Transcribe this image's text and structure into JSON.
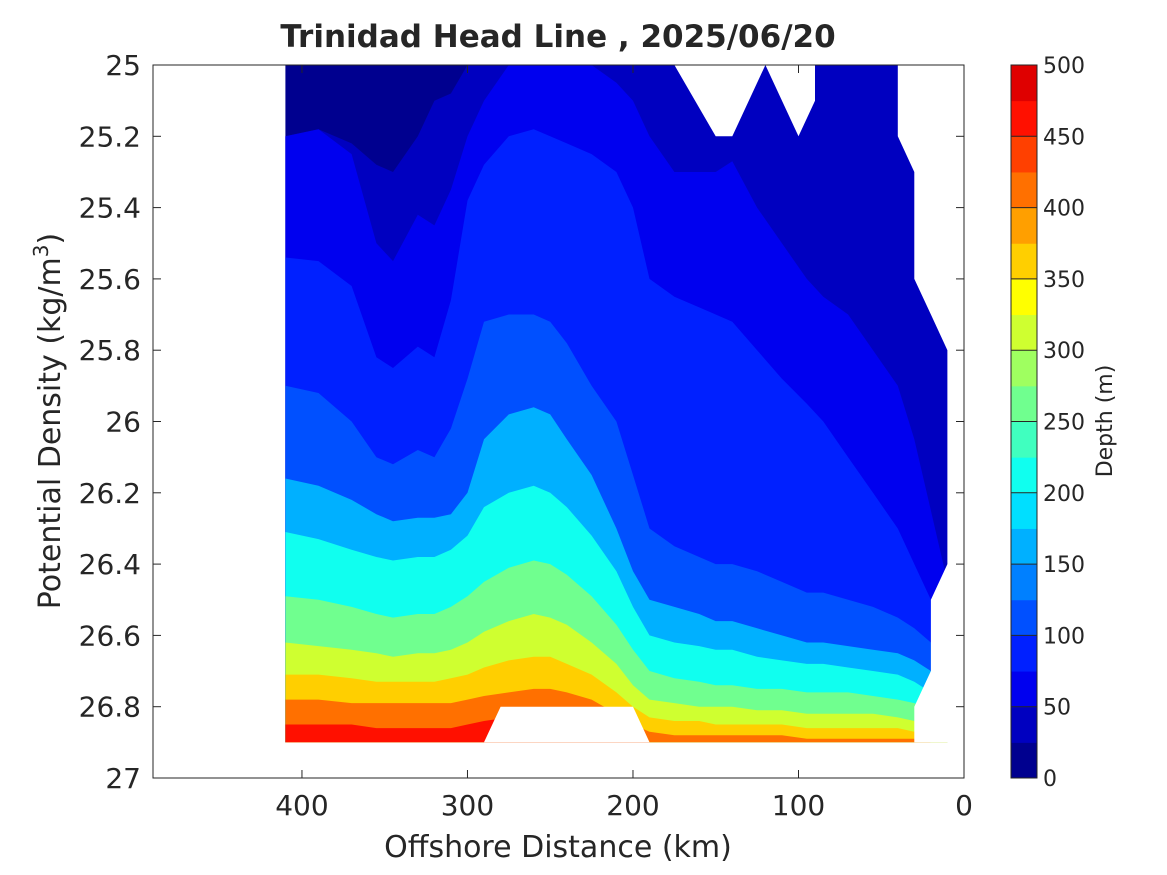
{
  "chart_data": {
    "type": "contour",
    "title": "Trinidad Head Line , 2025/06/20",
    "xlabel": "Offshore Distance (km)",
    "ylabel_main": "Potential Density (kg/m",
    "ylabel_sup": "3",
    "ylabel_close": ")",
    "colorbar_label": "Depth (m)",
    "x_reversed": true,
    "y_reversed": true,
    "xlim": [
      0,
      490
    ],
    "ylim": [
      25,
      27
    ],
    "xticks": [
      {
        "value": 400,
        "label": "400"
      },
      {
        "value": 300,
        "label": "300"
      },
      {
        "value": 200,
        "label": "200"
      },
      {
        "value": 100,
        "label": "100"
      },
      {
        "value": 0,
        "label": "0"
      }
    ],
    "yticks": [
      {
        "value": 25,
        "label": "25"
      },
      {
        "value": 25.2,
        "label": "25.2"
      },
      {
        "value": 25.4,
        "label": "25.4"
      },
      {
        "value": 25.6,
        "label": "25.6"
      },
      {
        "value": 25.8,
        "label": "25.8"
      },
      {
        "value": 26,
        "label": "26"
      },
      {
        "value": 26.2,
        "label": "26.2"
      },
      {
        "value": 26.4,
        "label": "26.4"
      },
      {
        "value": 26.6,
        "label": "26.6"
      },
      {
        "value": 26.8,
        "label": "26.8"
      },
      {
        "value": 27,
        "label": "27"
      }
    ],
    "colorbar": {
      "range": [
        0,
        500
      ],
      "ticks": [
        {
          "value": 0,
          "label": "0"
        },
        {
          "value": 50,
          "label": "50"
        },
        {
          "value": 100,
          "label": "100"
        },
        {
          "value": 150,
          "label": "150"
        },
        {
          "value": 200,
          "label": "200"
        },
        {
          "value": 250,
          "label": "250"
        },
        {
          "value": 300,
          "label": "300"
        },
        {
          "value": 350,
          "label": "350"
        },
        {
          "value": 400,
          "label": "400"
        },
        {
          "value": 450,
          "label": "450"
        },
        {
          "value": 500,
          "label": "500"
        }
      ],
      "levels": [
        0,
        25,
        50,
        75,
        100,
        125,
        150,
        175,
        200,
        225,
        250,
        275,
        300,
        325,
        350,
        375,
        400,
        425,
        450,
        475,
        500
      ],
      "colors": [
        "#00008f",
        "#0000c0",
        "#0000ef",
        "#0020ff",
        "#0050ff",
        "#0080ff",
        "#00b0ff",
        "#00dfff",
        "#10ffef",
        "#40ffbf",
        "#70ff8f",
        "#9fff60",
        "#cfff30",
        "#ffff00",
        "#ffcf00",
        "#ff9f00",
        "#ff7000",
        "#ff4000",
        "#ff1000",
        "#df0000",
        "#af0000"
      ]
    },
    "x_stations": [
      410,
      390,
      370,
      355,
      345,
      330,
      320,
      310,
      300,
      290,
      275,
      260,
      250,
      240,
      225,
      210,
      200,
      190,
      175,
      160,
      150,
      140,
      125,
      110,
      95,
      85,
      70,
      55,
      40,
      30,
      20,
      10
    ],
    "y_max": 26.9,
    "depth_isopycnals": [
      {
        "depth": 25,
        "y": [
          25.2,
          25.18,
          25.22,
          25.28,
          25.3,
          25.2,
          25.1,
          25.08,
          25.0,
          25.0,
          25.0,
          25.0,
          25.0,
          25.0,
          25.0,
          25.0,
          25.0,
          25.0,
          25.0,
          25.0,
          25.0,
          25.0,
          25.0,
          25.0,
          25.0,
          25.0,
          25.0,
          25.0,
          25.0,
          25.0,
          25.0,
          25.0
        ]
      },
      {
        "depth": 50,
        "y": [
          25.2,
          25.18,
          25.25,
          25.5,
          25.55,
          25.42,
          25.45,
          25.35,
          25.2,
          25.1,
          25.0,
          25.0,
          25.0,
          25.0,
          25.0,
          25.05,
          25.1,
          25.2,
          25.3,
          25.3,
          25.3,
          25.27,
          25.4,
          25.5,
          25.6,
          25.65,
          25.7,
          25.8,
          25.9,
          26.05,
          26.25,
          26.45
        ]
      },
      {
        "depth": 75,
        "y": [
          25.54,
          25.55,
          25.62,
          25.82,
          25.85,
          25.79,
          25.82,
          25.66,
          25.38,
          25.28,
          25.2,
          25.18,
          25.2,
          25.22,
          25.25,
          25.3,
          25.4,
          25.6,
          25.65,
          25.68,
          25.7,
          25.72,
          25.8,
          25.88,
          25.95,
          26.0,
          26.1,
          26.2,
          26.3,
          26.4,
          26.5,
          26.58
        ]
      },
      {
        "depth": 100,
        "y": [
          25.9,
          25.92,
          26.0,
          26.1,
          26.12,
          26.08,
          26.1,
          26.02,
          25.88,
          25.72,
          25.7,
          25.7,
          25.72,
          25.78,
          25.9,
          26.0,
          26.15,
          26.3,
          26.35,
          26.38,
          26.4,
          26.4,
          26.42,
          26.45,
          26.48,
          26.48,
          26.5,
          26.52,
          26.55,
          26.58,
          26.62,
          26.68
        ]
      },
      {
        "depth": 150,
        "y": [
          26.16,
          26.18,
          26.22,
          26.26,
          26.28,
          26.27,
          26.27,
          26.26,
          26.2,
          26.05,
          25.98,
          25.96,
          25.98,
          26.05,
          26.15,
          26.3,
          26.42,
          26.5,
          26.52,
          26.54,
          26.56,
          26.56,
          26.58,
          26.6,
          26.62,
          26.62,
          26.63,
          26.64,
          26.65,
          26.67,
          26.7,
          26.74
        ]
      },
      {
        "depth": 200,
        "y": [
          26.31,
          26.33,
          26.36,
          26.38,
          26.39,
          26.38,
          26.38,
          26.36,
          26.32,
          26.24,
          26.2,
          26.18,
          26.2,
          26.24,
          26.32,
          26.42,
          26.52,
          26.6,
          26.62,
          26.63,
          26.64,
          26.64,
          26.66,
          26.67,
          26.68,
          26.68,
          26.69,
          26.7,
          26.71,
          26.73,
          26.76,
          26.8
        ]
      },
      {
        "depth": 250,
        "y": [
          26.49,
          26.5,
          26.52,
          26.54,
          26.55,
          26.54,
          26.54,
          26.52,
          26.49,
          26.45,
          26.41,
          26.39,
          26.4,
          26.43,
          26.49,
          26.57,
          26.64,
          26.7,
          26.72,
          26.73,
          26.74,
          26.74,
          26.75,
          26.75,
          26.76,
          26.76,
          26.76,
          26.77,
          26.78,
          26.79,
          26.81,
          26.84
        ]
      },
      {
        "depth": 300,
        "y": [
          26.62,
          26.63,
          26.64,
          26.65,
          26.66,
          26.65,
          26.65,
          26.64,
          26.62,
          26.59,
          26.56,
          26.54,
          26.55,
          26.57,
          26.62,
          26.68,
          26.74,
          26.78,
          26.79,
          26.8,
          26.8,
          26.8,
          26.81,
          26.81,
          26.82,
          26.82,
          26.82,
          26.82,
          26.83,
          26.84,
          26.85,
          26.87
        ]
      },
      {
        "depth": 350,
        "y": [
          26.71,
          26.71,
          26.72,
          26.73,
          26.73,
          26.73,
          26.73,
          26.72,
          26.71,
          26.69,
          26.67,
          26.66,
          26.66,
          26.68,
          26.71,
          26.76,
          26.8,
          26.83,
          26.84,
          26.84,
          26.85,
          26.85,
          26.85,
          26.85,
          26.86,
          26.86,
          26.86,
          26.86,
          26.86,
          26.87,
          26.88,
          26.89
        ]
      },
      {
        "depth": 400,
        "y": [
          26.78,
          26.78,
          26.79,
          26.79,
          26.79,
          26.79,
          26.79,
          26.79,
          26.78,
          26.77,
          26.76,
          26.75,
          26.75,
          26.76,
          26.78,
          26.82,
          26.85,
          26.87,
          26.88,
          26.88,
          26.88,
          26.88,
          26.88,
          26.88,
          26.89,
          26.89,
          26.89,
          26.89,
          26.89,
          26.89,
          26.9,
          26.9
        ]
      },
      {
        "depth": 450,
        "y": [
          26.85,
          26.85,
          26.85,
          26.86,
          26.86,
          26.86,
          26.86,
          26.86,
          26.85,
          26.84,
          26.83,
          26.83,
          26.83,
          26.84,
          26.85,
          26.87,
          26.89,
          26.9,
          26.9,
          26.9,
          26.9,
          26.9,
          26.9,
          26.9,
          26.9,
          26.9,
          26.9,
          26.9,
          26.9,
          26.9,
          26.9,
          26.9
        ]
      }
    ],
    "no_data_regions": [
      {
        "name": "top-notch-left",
        "points": [
          [
            175,
            25.0
          ],
          [
            150,
            25.2
          ],
          [
            140,
            25.2
          ],
          [
            120,
            25.0
          ]
        ]
      },
      {
        "name": "top-notch-right",
        "points": [
          [
            120,
            25.0
          ],
          [
            100,
            25.2
          ],
          [
            90,
            25.1
          ],
          [
            90,
            25.0
          ]
        ]
      },
      {
        "name": "top-right-gap",
        "points": [
          [
            40,
            25.0
          ],
          [
            40,
            25.2
          ],
          [
            30,
            25.3
          ],
          [
            30,
            25.6
          ],
          [
            20,
            25.7
          ],
          [
            10,
            25.8
          ],
          [
            10,
            26.4
          ],
          [
            20,
            26.5
          ],
          [
            20,
            26.7
          ],
          [
            30,
            26.8
          ],
          [
            30,
            26.9
          ],
          [
            0,
            26.9
          ],
          [
            0,
            25.0
          ]
        ]
      },
      {
        "name": "bottom-gap",
        "points": [
          [
            290,
            26.9
          ],
          [
            280,
            26.8
          ],
          [
            200,
            26.8
          ],
          [
            190,
            26.9
          ]
        ]
      }
    ]
  }
}
